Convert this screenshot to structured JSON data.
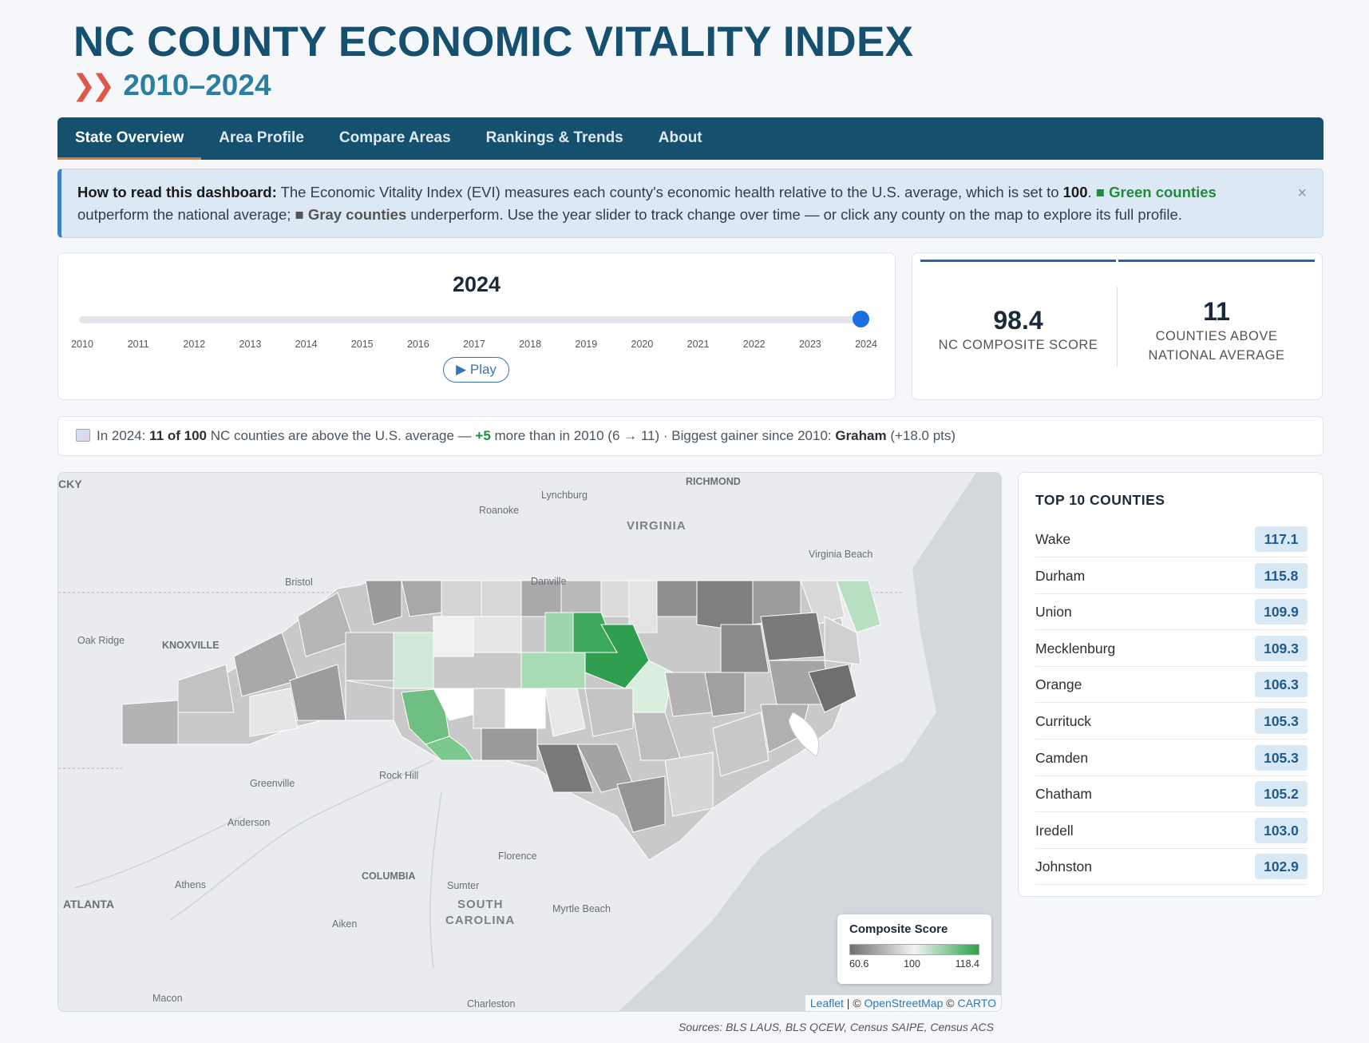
{
  "header": {
    "title": "NC COUNTY ECONOMIC VITALITY INDEX",
    "chevrons": "❯❯",
    "years": "2010–2024"
  },
  "nav": {
    "tabs": [
      {
        "label": "State Overview",
        "active": true
      },
      {
        "label": "Area Profile"
      },
      {
        "label": "Compare Areas"
      },
      {
        "label": "Rankings & Trends"
      },
      {
        "label": "About"
      }
    ]
  },
  "info": {
    "heading": "How to read this dashboard:",
    "text1": " The Economic Vitality Index (EVI) measures each county's economic health relative to the U.S. average, which is set to ",
    "baseline": "100",
    "text2": ". ",
    "green_label": "■ Green counties",
    "text3": " outperform the national average; ",
    "gray_label": "■ Gray counties",
    "text4": " underperform. Use the year slider to track change over time — or click any county on the map to explore its full profile.",
    "close": "×"
  },
  "slider": {
    "selected_year": "2024",
    "years": [
      "2010",
      "2011",
      "2012",
      "2013",
      "2014",
      "2015",
      "2016",
      "2017",
      "2018",
      "2019",
      "2020",
      "2021",
      "2022",
      "2023",
      "2024"
    ],
    "position_fraction": 1.0,
    "play_label": "▶ Play"
  },
  "kpis": {
    "composite_value": "98.4",
    "composite_label": "NC COMPOSITE SCORE",
    "above_value": "11",
    "above_label_1": "COUNTIES ABOVE",
    "above_label_2": "NATIONAL AVERAGE"
  },
  "summary": {
    "prefix": "In 2024: ",
    "count": "11 of 100",
    "mid": " NC counties are above the U.S. average — ",
    "delta": "+5",
    "after": " more than in 2010 (6 → 11)",
    "sep": " · Biggest gainer since 2010: ",
    "gainer": "Graham",
    "gainer_pts": " (+18.0 pts)"
  },
  "map": {
    "labels": {
      "kentucky": "CKY",
      "richmond": "RICHMOND",
      "lynchburg": "Lynchburg",
      "roanoke": "Roanoke",
      "virginia": "VIRGINIA",
      "virginia_beach": "Virginia Beach",
      "bristol": "Bristol",
      "danville": "Danville",
      "oak_ridge": "Oak Ridge",
      "knoxville": "KNOXVILLE",
      "greenville": "Greenville",
      "rock_hill": "Rock Hill",
      "anderson": "Anderson",
      "florence": "Florence",
      "columbia": "COLUMBIA",
      "athens": "Athens",
      "sumter": "Sumter",
      "south_carolina_1": "SOUTH",
      "south_carolina_2": "CAROLINA",
      "myrtle_beach": "Myrtle Beach",
      "atlanta": "ATLANTA",
      "aiken": "Aiken",
      "macon": "Macon",
      "charleston": "Charleston"
    },
    "legend": {
      "title": "Composite Score",
      "min": "60.6",
      "mid": "100",
      "max": "118.4",
      "colors": {
        "low": "#6f6f6f",
        "mid": "#f3f3f3",
        "high": "#2aa34a"
      }
    },
    "attribution": {
      "leaflet": "Leaflet",
      "sep1": " | © ",
      "osm": "OpenStreetMap",
      "sep2": " © ",
      "carto": "CARTO"
    }
  },
  "top10": {
    "title": "TOP 10 COUNTIES",
    "rows": [
      {
        "name": "Wake",
        "score": "117.1"
      },
      {
        "name": "Durham",
        "score": "115.8"
      },
      {
        "name": "Union",
        "score": "109.9"
      },
      {
        "name": "Mecklenburg",
        "score": "109.3"
      },
      {
        "name": "Orange",
        "score": "106.3"
      },
      {
        "name": "Currituck",
        "score": "105.3"
      },
      {
        "name": "Camden",
        "score": "105.3"
      },
      {
        "name": "Chatham",
        "score": "105.2"
      },
      {
        "name": "Iredell",
        "score": "103.0"
      },
      {
        "name": "Johnston",
        "score": "102.9"
      }
    ]
  },
  "sources": "Sources: BLS LAUS, BLS QCEW, Census SAIPE, Census ACS"
}
